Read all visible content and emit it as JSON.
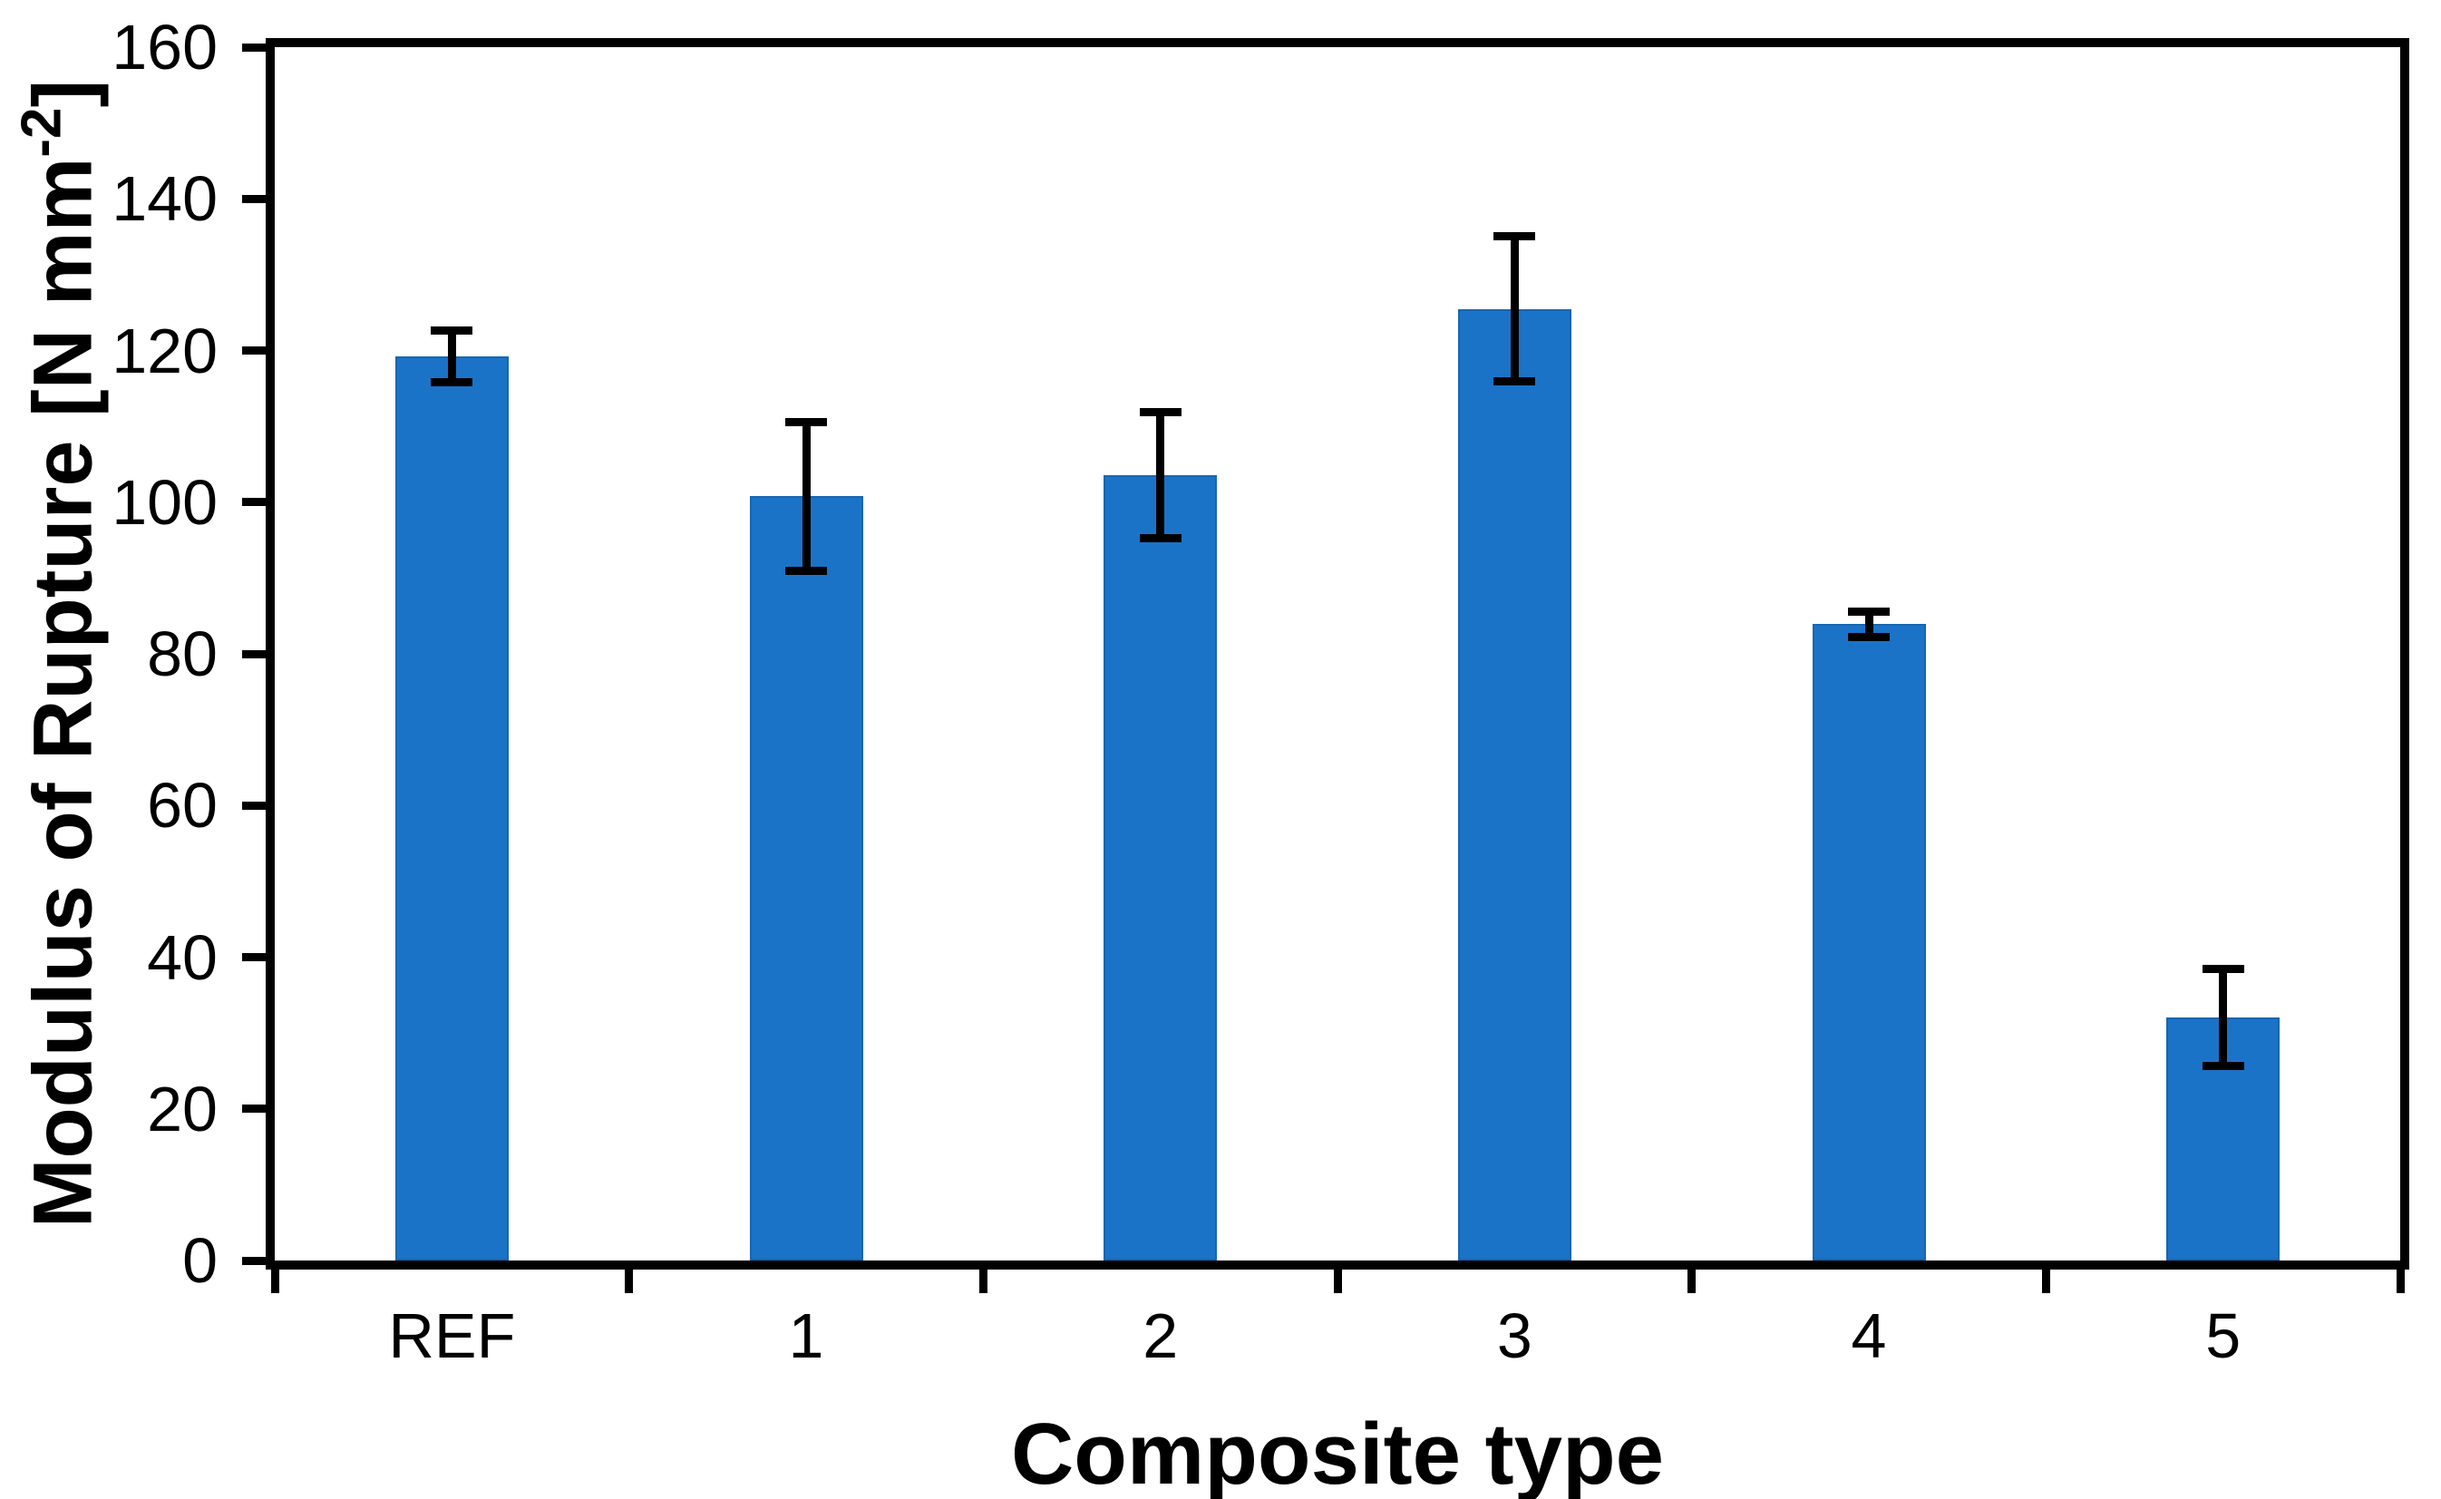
{
  "chart_data": {
    "type": "bar",
    "categories": [
      "REF",
      "1",
      "2",
      "3",
      "4",
      "5"
    ],
    "values": [
      119.2,
      100.8,
      103.6,
      125.5,
      83.9,
      32.1
    ],
    "error_bars": [
      3.4,
      9.8,
      8.3,
      9.6,
      1.7,
      6.4
    ],
    "title": "",
    "xlabel": "Composite type",
    "ylabel": "Modulus of Rupture [N mm⁻²]",
    "ylabel_parts": {
      "prefix": "Modulus of Rupture [N mm",
      "sup": "-2",
      "suffix": "]"
    },
    "ylim": [
      0,
      160
    ],
    "yticks": [
      0,
      20,
      40,
      60,
      80,
      100,
      120,
      140,
      160
    ],
    "grid": false,
    "legend": false,
    "bar_color": "#1B73C8",
    "bar_edge_color": "#1866B0",
    "axis_color": "#000000",
    "error_bar_color": "#000000"
  }
}
